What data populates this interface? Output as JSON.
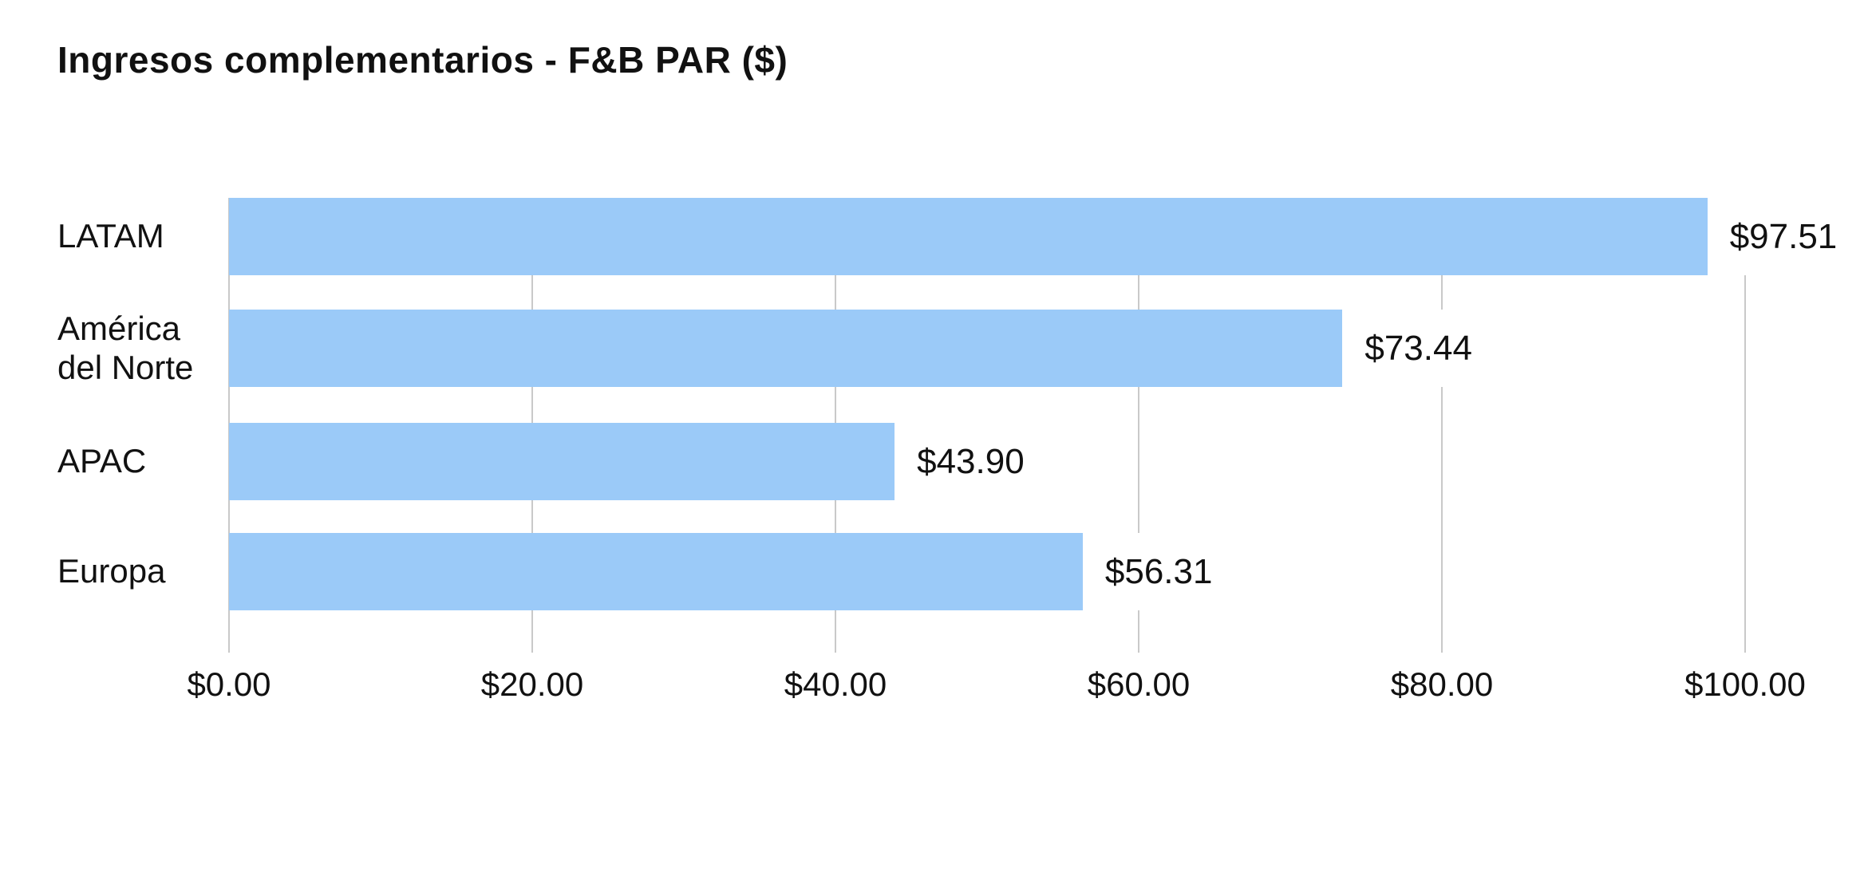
{
  "chart_data": {
    "type": "bar",
    "orientation": "horizontal",
    "title": "Ingresos complementarios - F&B PAR ($)",
    "categories": [
      "LATAM",
      "América del Norte",
      "APAC",
      "Europa"
    ],
    "values": [
      97.51,
      73.44,
      43.9,
      56.31
    ],
    "value_labels": [
      "$97.51",
      "$73.44",
      "$43.90",
      "$56.31"
    ],
    "x_tick_values": [
      0,
      20,
      40,
      60,
      80,
      100
    ],
    "x_tick_labels": [
      "$0.00",
      "$20.00",
      "$40.00",
      "$60.00",
      "$80.00",
      "$100.00"
    ],
    "xlim": [
      0,
      100
    ],
    "xlabel": "",
    "ylabel": "",
    "grid": "vertical",
    "legend": "none",
    "colors": {
      "bar": "#9BCAF8",
      "gridline": "#C9C9C9",
      "text": "#111111",
      "background": "#FFFFFF"
    }
  }
}
